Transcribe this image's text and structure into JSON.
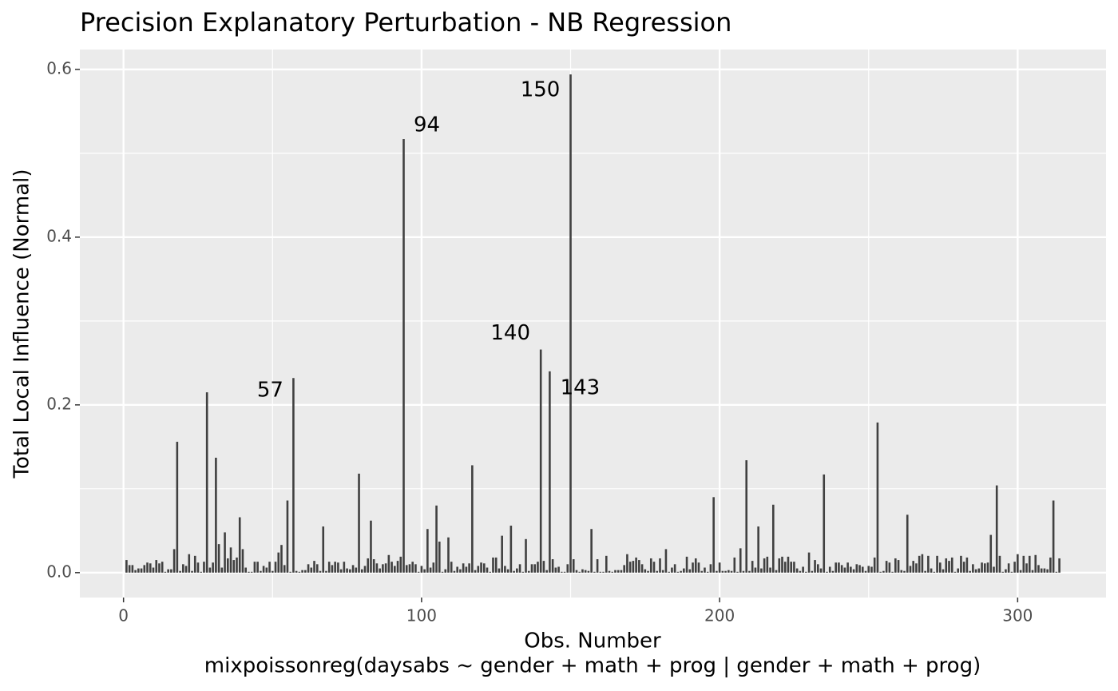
{
  "chart_data": {
    "type": "bar",
    "title": "Precision Explanatory Perturbation - NB Regression",
    "xlabel": [
      "Obs. Number",
      "mixpoissonreg(daysabs ~ gender + math + prog | gender + math + prog)"
    ],
    "ylabel": "Total Local Influence (Normal)",
    "color": "#404040",
    "grid": true,
    "minor_grid": true,
    "xlim": [
      -14.65,
      329.65
    ],
    "ylim": [
      -0.0297,
      0.6237
    ],
    "xticks": [
      0,
      100,
      200,
      300
    ],
    "yticks": [
      {
        "value": 0,
        "label": "0.0"
      },
      {
        "value": 0.2,
        "label": "0.2"
      },
      {
        "value": 0.4,
        "label": "0.4"
      },
      {
        "value": 0.6,
        "label": "0.6"
      }
    ],
    "annotations": [
      {
        "text": "57",
        "x": 57
      },
      {
        "text": "94",
        "x": 94
      },
      {
        "text": "140",
        "x": 140
      },
      {
        "text": "143",
        "x": 143
      },
      {
        "text": "150",
        "x": 150
      }
    ],
    "x": [
      1,
      2,
      3,
      4,
      5,
      6,
      7,
      8,
      9,
      10,
      11,
      12,
      13,
      14,
      15,
      16,
      17,
      18,
      19,
      20,
      21,
      22,
      23,
      24,
      25,
      26,
      27,
      28,
      29,
      30,
      31,
      32,
      33,
      34,
      35,
      36,
      37,
      38,
      39,
      40,
      41,
      42,
      43,
      44,
      45,
      46,
      47,
      48,
      49,
      50,
      51,
      52,
      53,
      54,
      55,
      56,
      57,
      58,
      59,
      60,
      61,
      62,
      63,
      64,
      65,
      66,
      67,
      68,
      69,
      70,
      71,
      72,
      73,
      74,
      75,
      76,
      77,
      78,
      79,
      80,
      81,
      82,
      83,
      84,
      85,
      86,
      87,
      88,
      89,
      90,
      91,
      92,
      93,
      94,
      95,
      96,
      97,
      98,
      99,
      100,
      101,
      102,
      103,
      104,
      105,
      106,
      107,
      108,
      109,
      110,
      111,
      112,
      113,
      114,
      115,
      116,
      117,
      118,
      119,
      120,
      121,
      122,
      123,
      124,
      125,
      126,
      127,
      128,
      129,
      130,
      131,
      132,
      133,
      134,
      135,
      136,
      137,
      138,
      139,
      140,
      141,
      142,
      143,
      144,
      145,
      146,
      147,
      148,
      149,
      150,
      151,
      152,
      153,
      154,
      155,
      156,
      157,
      158,
      159,
      160,
      161,
      162,
      163,
      164,
      165,
      166,
      167,
      168,
      169,
      170,
      171,
      172,
      173,
      174,
      175,
      176,
      177,
      178,
      179,
      180,
      181,
      182,
      183,
      184,
      185,
      186,
      187,
      188,
      189,
      190,
      191,
      192,
      193,
      194,
      195,
      196,
      197,
      198,
      199,
      200,
      201,
      202,
      203,
      204,
      205,
      206,
      207,
      208,
      209,
      210,
      211,
      212,
      213,
      214,
      215,
      216,
      217,
      218,
      219,
      220,
      221,
      222,
      223,
      224,
      225,
      226,
      227,
      228,
      229,
      230,
      231,
      232,
      233,
      234,
      235,
      236,
      237,
      238,
      239,
      240,
      241,
      242,
      243,
      244,
      245,
      246,
      247,
      248,
      249,
      250,
      251,
      252,
      253,
      254,
      255,
      256,
      257,
      258,
      259,
      260,
      261,
      262,
      263,
      264,
      265,
      266,
      267,
      268,
      269,
      270,
      271,
      272,
      273,
      274,
      275,
      276,
      277,
      278,
      279,
      280,
      281,
      282,
      283,
      284,
      285,
      286,
      287,
      288,
      289,
      290,
      291,
      292,
      293,
      294,
      295,
      296,
      297,
      298,
      299,
      300,
      301,
      302,
      303,
      304,
      305,
      306,
      307,
      308,
      309,
      310,
      311,
      312,
      313,
      314
    ],
    "values": [
      0.015,
      0.009,
      0.009,
      0.003,
      0.005,
      0.005,
      0.009,
      0.012,
      0.011,
      0.006,
      0.015,
      0.011,
      0.013,
      0.001,
      0.004,
      0.004,
      0.028,
      0.156,
      0.002,
      0.01,
      0.008,
      0.022,
      0.002,
      0.02,
      0.012,
      0.001,
      0.013,
      0.215,
      0.006,
      0.012,
      0.137,
      0.034,
      0.006,
      0.048,
      0.017,
      0.03,
      0.015,
      0.018,
      0.066,
      0.028,
      0.006,
      0.001,
      0.001,
      0.013,
      0.013,
      0.002,
      0.008,
      0.006,
      0.013,
      0.002,
      0.013,
      0.024,
      0.033,
      0.009,
      0.086,
      0.001,
      0.232,
      0.002,
      0.001,
      0.003,
      0.003,
      0.01,
      0.006,
      0.014,
      0.01,
      0.002,
      0.055,
      0.002,
      0.013,
      0.009,
      0.013,
      0.012,
      0.004,
      0.013,
      0.005,
      0.004,
      0.009,
      0.006,
      0.118,
      0.004,
      0.008,
      0.017,
      0.062,
      0.016,
      0.011,
      0.005,
      0.01,
      0.011,
      0.021,
      0.013,
      0.008,
      0.014,
      0.019,
      0.517,
      0.009,
      0.01,
      0.013,
      0.01,
      0.001,
      0.008,
      0.004,
      0.052,
      0.006,
      0.012,
      0.08,
      0.037,
      0.001,
      0.004,
      0.042,
      0.013,
      0.002,
      0.007,
      0.004,
      0.011,
      0.007,
      0.011,
      0.128,
      0.003,
      0.008,
      0.012,
      0.011,
      0.006,
      0.001,
      0.018,
      0.018,
      0.005,
      0.044,
      0.008,
      0.004,
      0.056,
      0.002,
      0.005,
      0.01,
      0.001,
      0.04,
      0.002,
      0.01,
      0.01,
      0.013,
      0.266,
      0.014,
      0.003,
      0.24,
      0.016,
      0.006,
      0.007,
      0.001,
      0.001,
      0.01,
      0.594,
      0.016,
      0.003,
      0.001,
      0.004,
      0.003,
      0.002,
      0.052,
      0.001,
      0.016,
      0.001,
      0.001,
      0.02,
      0.002,
      0.001,
      0.003,
      0.003,
      0.003,
      0.009,
      0.022,
      0.013,
      0.014,
      0.018,
      0.015,
      0.01,
      0.004,
      0.002,
      0.017,
      0.013,
      0.002,
      0.017,
      0.003,
      0.028,
      0.001,
      0.006,
      0.01,
      0.001,
      0.002,
      0.005,
      0.019,
      0.004,
      0.012,
      0.017,
      0.012,
      0.002,
      0.006,
      0.001,
      0.01,
      0.09,
      0.002,
      0.012,
      0.002,
      0.002,
      0.003,
      0.002,
      0.018,
      0.001,
      0.029,
      0.002,
      0.134,
      0.002,
      0.014,
      0.006,
      0.055,
      0.005,
      0.017,
      0.019,
      0.006,
      0.081,
      0.003,
      0.017,
      0.019,
      0.013,
      0.019,
      0.013,
      0.013,
      0.005,
      0.002,
      0.007,
      0.001,
      0.024,
      0.002,
      0.015,
      0.01,
      0.005,
      0.117,
      0.001,
      0.007,
      0.002,
      0.012,
      0.012,
      0.009,
      0.006,
      0.012,
      0.007,
      0.004,
      0.01,
      0.009,
      0.007,
      0.002,
      0.008,
      0.007,
      0.018,
      0.179,
      0.001,
      0.002,
      0.014,
      0.012,
      0.001,
      0.017,
      0.015,
      0.003,
      0.002,
      0.069,
      0.008,
      0.014,
      0.011,
      0.02,
      0.022,
      0.002,
      0.02,
      0.005,
      0.001,
      0.02,
      0.012,
      0.004,
      0.017,
      0.014,
      0.018,
      0.001,
      0.005,
      0.02,
      0.013,
      0.018,
      0.002,
      0.01,
      0.004,
      0.005,
      0.012,
      0.011,
      0.012,
      0.045,
      0.007,
      0.104,
      0.02,
      0.001,
      0.004,
      0.011,
      0.001,
      0.013,
      0.022,
      0.003,
      0.02,
      0.011,
      0.02,
      0.003,
      0.021,
      0.009,
      0.005,
      0.005,
      0.004,
      0.018,
      0.086,
      0.001,
      0.017
    ]
  }
}
